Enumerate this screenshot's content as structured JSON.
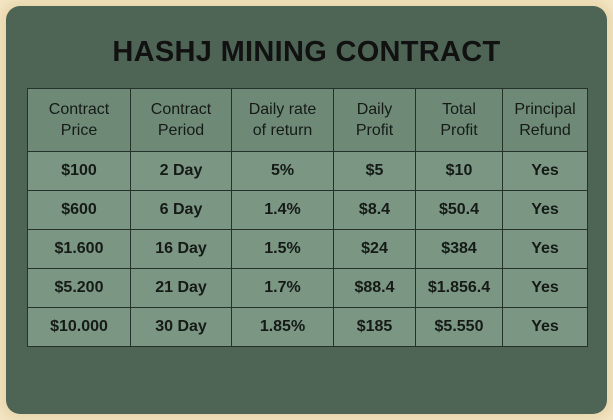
{
  "title": "HASHJ MINING CONTRACT",
  "table": {
    "header": [
      "Contract\nPrice",
      "Contract\nPeriod",
      "Daily rate\nof return",
      "Daily\nProfit",
      "Total\nProfit",
      "Principal\nRefund"
    ],
    "rows": [
      [
        "$100",
        "2 Day",
        "5%",
        "$5",
        "$10",
        "Yes"
      ],
      [
        "$600",
        "6 Day",
        "1.4%",
        "$8.4",
        "$50.4",
        "Yes"
      ],
      [
        "$1.600",
        "16 Day",
        "1.5%",
        "$24",
        "$384",
        "Yes"
      ],
      [
        "$5.200",
        "21 Day",
        "1.7%",
        "$88.4",
        "$1.856.4",
        "Yes"
      ],
      [
        "$10.000",
        "30 Day",
        "1.85%",
        "$185",
        "$5.550",
        "Yes"
      ]
    ]
  }
}
